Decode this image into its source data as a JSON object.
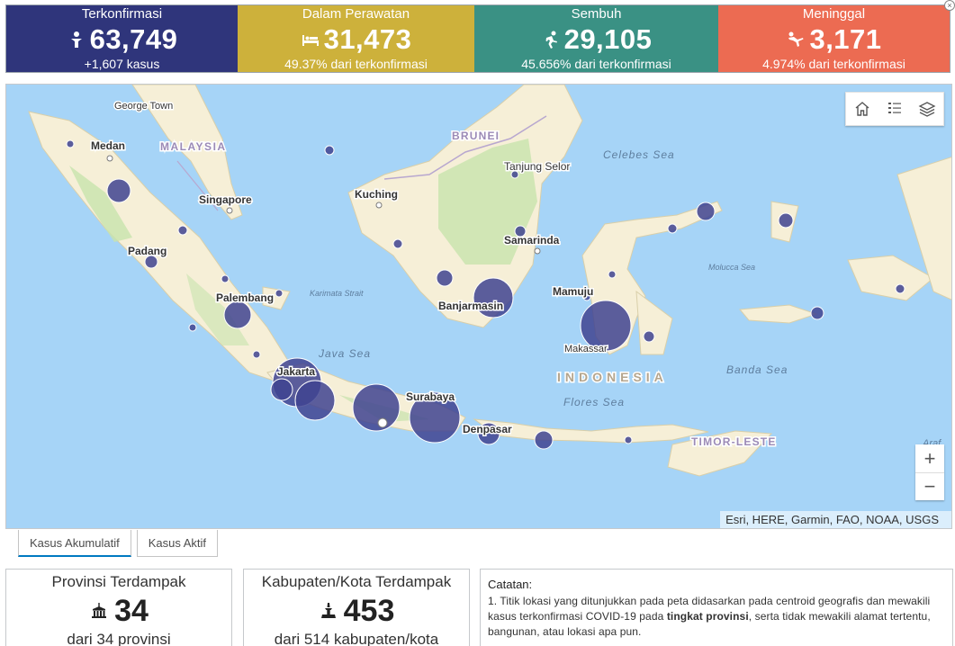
{
  "colors": {
    "confirmed": "#2f357b",
    "treatment": "#cdb13b",
    "recovered": "#3a9184",
    "deaths": "#ec6b52",
    "bubble": "#3f4390",
    "water": "#a6d4f7",
    "land": "#f6efd7",
    "forest": "#c8e3ad"
  },
  "kpis": {
    "confirmed": {
      "title": "Terkonfirmasi",
      "value": "63,749",
      "sub": "+1,607 kasus",
      "icon": "person-icon"
    },
    "treatment": {
      "title": "Dalam Perawatan",
      "value": "31,473",
      "sub": "49.37% dari terkonfirmasi",
      "icon": "hospital-bed-icon"
    },
    "recovered": {
      "title": "Sembuh",
      "value": "29,105",
      "sub": "45.656% dari terkonfirmasi",
      "icon": "running-person-icon"
    },
    "deaths": {
      "title": "Meninggal",
      "value": "3,171",
      "sub": "4.974% dari terkonfirmasi",
      "icon": "falling-person-icon"
    }
  },
  "close_mark": "×",
  "map": {
    "labels": {
      "george_town": "George Town",
      "medan": "Medan",
      "malaysia": "MALAYSIA",
      "singapore": "Singapore",
      "padang": "Padang",
      "palembang": "Palembang",
      "karimata": "Karimata Strait",
      "java_sea": "Java Sea",
      "jakarta": "Jakarta",
      "kuching": "Kuching",
      "brunei": "BRUNEI",
      "tanjung_selor": "Tanjung Selor",
      "celebes_sea": "Celebes Sea",
      "samarinda": "Samarinda",
      "banjarmasin": "Banjarmasin",
      "mamuju": "Mamuju",
      "makassar": "Makassar",
      "indonesia": "INDONESIA",
      "flores_sea": "Flores Sea",
      "banda_sea": "Banda Sea",
      "molucca_sea": "Molucca Sea",
      "surabaya": "Surabaya",
      "denpasar": "Denpasar",
      "timor_leste": "TIMOR-LESTE",
      "arafura": "Araf"
    },
    "attribution": "Esri, HERE, Garmin, FAO, NOAA, USGS",
    "zoom_in": "+",
    "zoom_out": "−"
  },
  "tabs": [
    {
      "label": "Kasus Akumulatif",
      "active": true
    },
    {
      "label": "Kasus Aktif",
      "active": false
    }
  ],
  "cards": {
    "provinces": {
      "title": "Provinsi Terdampak",
      "value": "34",
      "sub": "dari 34 provinsi",
      "icon": "government-building-icon"
    },
    "regencies": {
      "title": "Kabupaten/Kota Terdampak",
      "value": "453",
      "sub": "dari 514 kabupaten/kota",
      "icon": "monument-icon"
    }
  },
  "notes": {
    "title": "Catatan:",
    "text_1": "1. Titik lokasi yang ditunjukkan pada peta didasarkan pada centroid geografis dan mewakili kasus terkonfirmasi COVID-19 pada ",
    "text_bold": "tingkat provinsi",
    "text_2": ", serta tidak mewakili alamat tertentu, bangunan, atau lokasi apa pun."
  }
}
